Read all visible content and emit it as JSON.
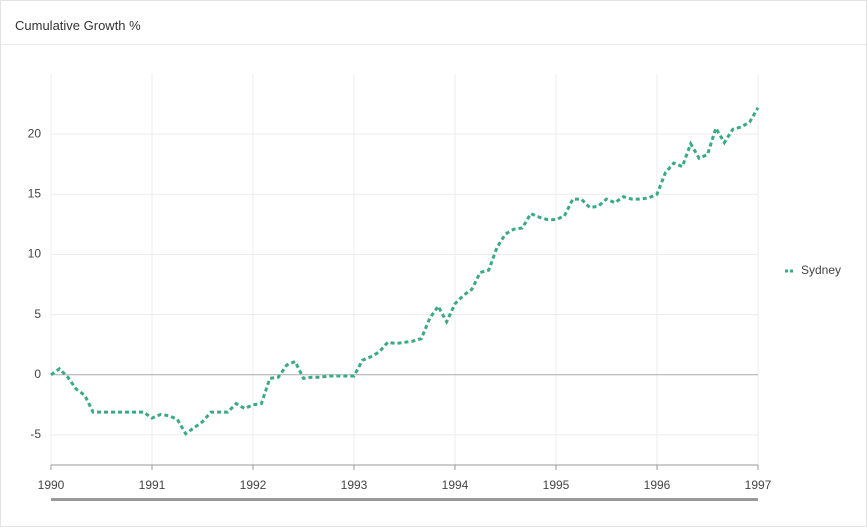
{
  "chart_data": {
    "type": "line",
    "title": "Cumulative Growth %",
    "xlim": [
      1990,
      1997
    ],
    "xticks": [
      1990,
      1991,
      1992,
      1993,
      1994,
      1995,
      1996,
      1997
    ],
    "ylim": [
      -7.5,
      25
    ],
    "yticks": [
      -5,
      0,
      5,
      10,
      15,
      20
    ],
    "grid": true,
    "legend": "right",
    "series": [
      {
        "name": "Sydney",
        "color": "#3aaa85",
        "values": [
          0,
          0.5,
          -0.2,
          -1.2,
          -1.7,
          -3.1,
          -3.1,
          -3.1,
          -3.1,
          -3.1,
          -3.1,
          -3.1,
          -3.6,
          -3.3,
          -3.4,
          -3.7,
          -4.9,
          -4.4,
          -3.9,
          -3.1,
          -3.1,
          -3.1,
          -2.4,
          -2.8,
          -2.5,
          -2.4,
          -0.3,
          -0.2,
          0.8,
          1.1,
          -0.3,
          -0.2,
          -0.2,
          -0.1,
          -0.1,
          -0.1,
          -0.1,
          1.2,
          1.5,
          1.9,
          2.7,
          2.6,
          2.7,
          2.8,
          3.0,
          4.7,
          5.7,
          4.4,
          5.9,
          6.6,
          7.1,
          8.5,
          8.7,
          10.6,
          11.7,
          12.1,
          12.2,
          13.4,
          13.1,
          12.9,
          12.9,
          13.2,
          14.6,
          14.6,
          13.9,
          14.0,
          14.6,
          14.3,
          14.8,
          14.6,
          14.6,
          14.7,
          15.0,
          16.8,
          17.6,
          17.3,
          19.2,
          18.0,
          18.3,
          20.5,
          19.3,
          20.4,
          20.6,
          21.0,
          22.2
        ]
      }
    ]
  }
}
